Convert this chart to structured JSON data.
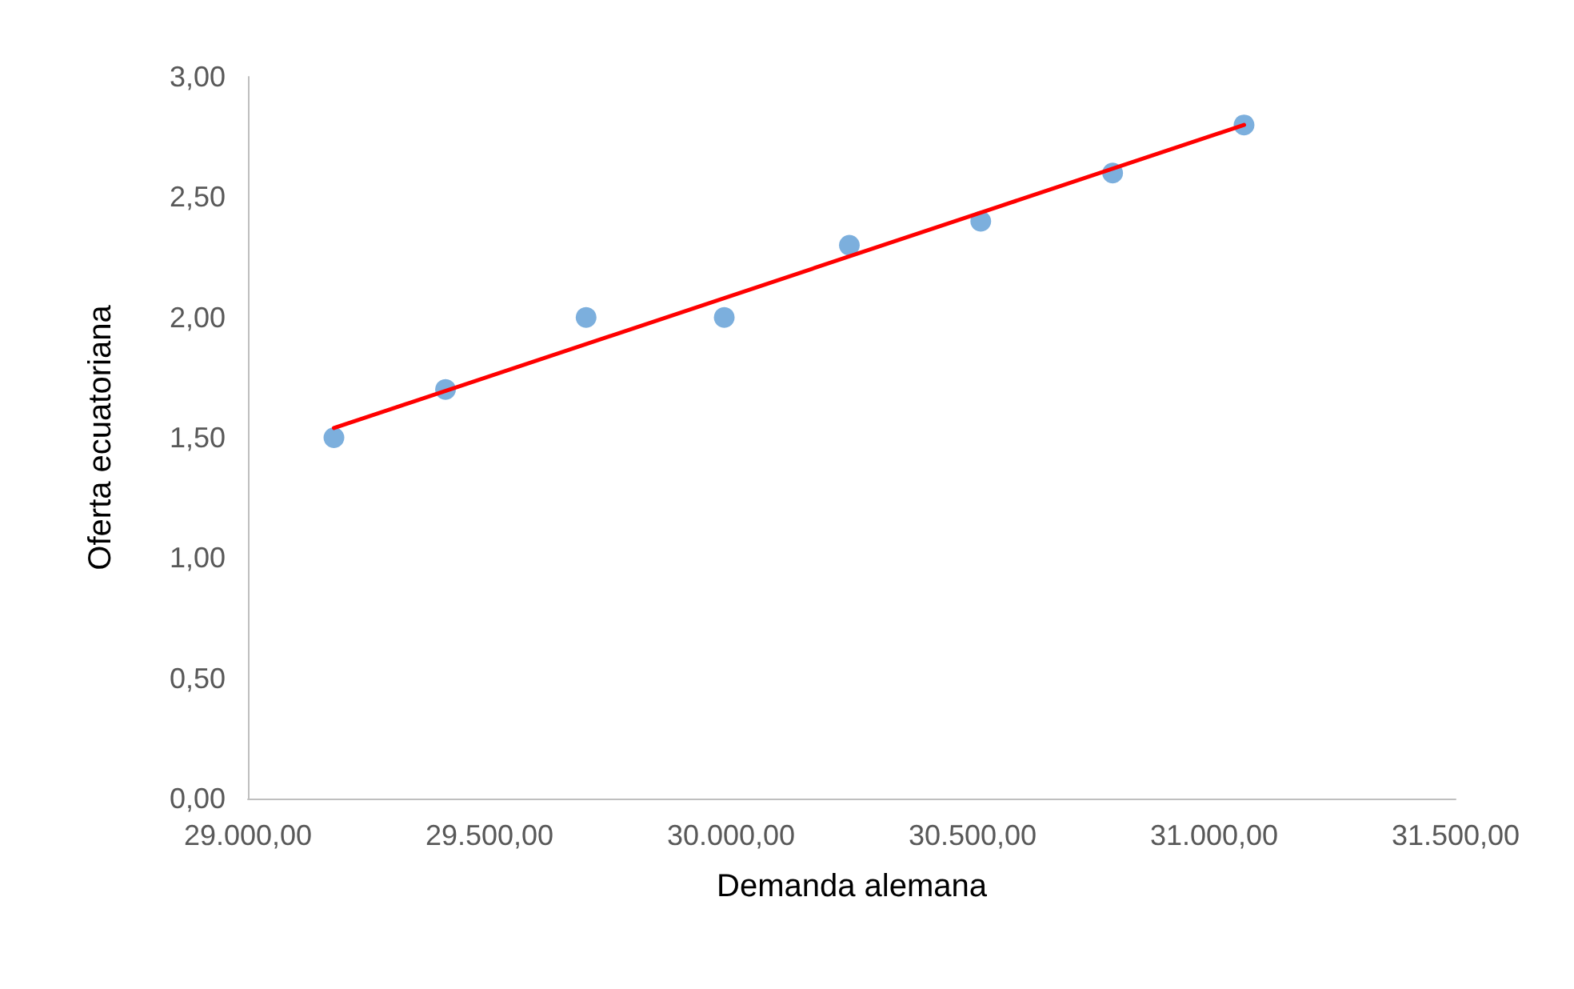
{
  "chart_data": {
    "type": "scatter",
    "xlabel": "Demanda alemana",
    "ylabel": "Oferta ecuatoriana",
    "xlim": [
      29000,
      31500
    ],
    "xticks": [
      {
        "value": 29000,
        "label": "29.000,00"
      },
      {
        "value": 29500,
        "label": "29.500,00"
      },
      {
        "value": 30000,
        "label": "30.000,00"
      },
      {
        "value": 30500,
        "label": "30.500,00"
      },
      {
        "value": 31000,
        "label": "31.000,00"
      },
      {
        "value": 31500,
        "label": "31.500,00"
      }
    ],
    "ylim": [
      0,
      3
    ],
    "yticks": [
      {
        "value": 0,
        "label": "0,00"
      },
      {
        "value": 0.5,
        "label": "0,50"
      },
      {
        "value": 1,
        "label": "1,00"
      },
      {
        "value": 1.5,
        "label": "1,50"
      },
      {
        "value": 2,
        "label": "2,00"
      },
      {
        "value": 2.5,
        "label": "2,50"
      },
      {
        "value": 3,
        "label": "3,00"
      }
    ],
    "grid": false,
    "marker": "circle",
    "series": [
      {
        "color": "#5b9bd5",
        "x": [
          29178,
          29409,
          29700,
          29986,
          30245,
          30517,
          30790,
          31062
        ],
        "values": [
          1.5,
          1.7,
          2.0,
          2.0,
          2.3,
          2.4,
          2.6,
          2.8
        ]
      },
      {
        "type": "line",
        "color": "#ff0000",
        "marker": "none",
        "x": [
          29178,
          31062
        ],
        "values": [
          1.54,
          2.8
        ]
      }
    ]
  }
}
